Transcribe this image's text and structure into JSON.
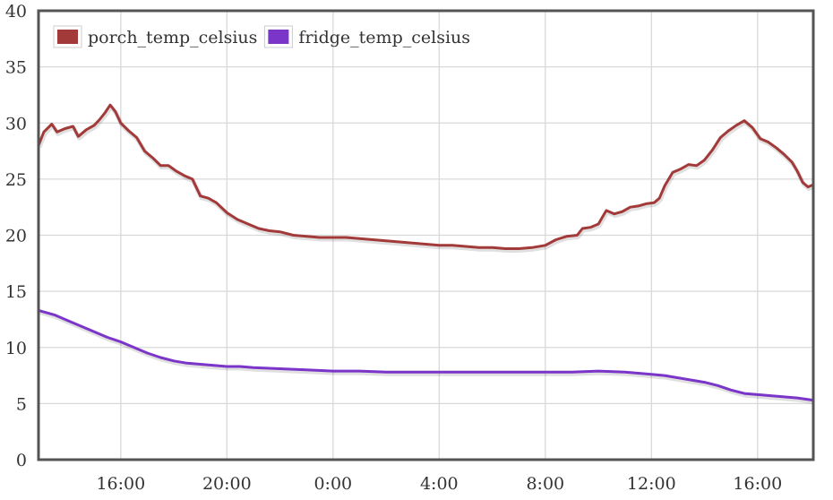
{
  "chart_data": {
    "type": "line",
    "title": "",
    "xlabel": "",
    "ylabel": "",
    "xlim": [
      12.9,
      42.1
    ],
    "ylim": [
      0,
      40
    ],
    "y_ticks": [
      0,
      5,
      10,
      15,
      20,
      25,
      30,
      35,
      40
    ],
    "x_ticks": [
      {
        "value": 16,
        "label": "16:00"
      },
      {
        "value": 20,
        "label": "20:00"
      },
      {
        "value": 24,
        "label": "0:00"
      },
      {
        "value": 28,
        "label": "4:00"
      },
      {
        "value": 32,
        "label": "8:00"
      },
      {
        "value": 36,
        "label": "12:00"
      },
      {
        "value": 40,
        "label": "16:00"
      }
    ],
    "grid": true,
    "legend_position": "top-left",
    "series": [
      {
        "name": "porch_temp_celsius",
        "color": "#a33a3a",
        "points": [
          [
            12.9,
            28.0
          ],
          [
            13.1,
            29.2
          ],
          [
            13.4,
            29.9
          ],
          [
            13.6,
            29.2
          ],
          [
            13.9,
            29.5
          ],
          [
            14.2,
            29.7
          ],
          [
            14.4,
            28.8
          ],
          [
            14.7,
            29.4
          ],
          [
            15.0,
            29.8
          ],
          [
            15.2,
            30.3
          ],
          [
            15.4,
            30.9
          ],
          [
            15.6,
            31.6
          ],
          [
            15.8,
            31.0
          ],
          [
            16.0,
            30.0
          ],
          [
            16.3,
            29.3
          ],
          [
            16.6,
            28.7
          ],
          [
            16.9,
            27.5
          ],
          [
            17.2,
            26.9
          ],
          [
            17.5,
            26.2
          ],
          [
            17.8,
            26.2
          ],
          [
            18.1,
            25.7
          ],
          [
            18.4,
            25.3
          ],
          [
            18.7,
            25.0
          ],
          [
            19.0,
            23.5
          ],
          [
            19.3,
            23.3
          ],
          [
            19.6,
            22.9
          ],
          [
            20.0,
            22.0
          ],
          [
            20.4,
            21.4
          ],
          [
            20.8,
            21.0
          ],
          [
            21.2,
            20.6
          ],
          [
            21.6,
            20.4
          ],
          [
            22.0,
            20.3
          ],
          [
            22.5,
            20.0
          ],
          [
            23.0,
            19.9
          ],
          [
            23.5,
            19.8
          ],
          [
            24.0,
            19.8
          ],
          [
            24.5,
            19.8
          ],
          [
            25.0,
            19.7
          ],
          [
            25.5,
            19.6
          ],
          [
            26.0,
            19.5
          ],
          [
            26.5,
            19.4
          ],
          [
            27.0,
            19.3
          ],
          [
            27.5,
            19.2
          ],
          [
            28.0,
            19.1
          ],
          [
            28.5,
            19.1
          ],
          [
            29.0,
            19.0
          ],
          [
            29.5,
            18.9
          ],
          [
            30.0,
            18.9
          ],
          [
            30.5,
            18.8
          ],
          [
            31.0,
            18.8
          ],
          [
            31.5,
            18.9
          ],
          [
            32.0,
            19.1
          ],
          [
            32.4,
            19.6
          ],
          [
            32.8,
            19.9
          ],
          [
            33.2,
            20.0
          ],
          [
            33.4,
            20.6
          ],
          [
            33.7,
            20.7
          ],
          [
            34.0,
            21.0
          ],
          [
            34.3,
            22.2
          ],
          [
            34.6,
            21.9
          ],
          [
            34.9,
            22.1
          ],
          [
            35.2,
            22.5
          ],
          [
            35.5,
            22.6
          ],
          [
            35.8,
            22.8
          ],
          [
            36.1,
            22.9
          ],
          [
            36.3,
            23.3
          ],
          [
            36.5,
            24.4
          ],
          [
            36.8,
            25.6
          ],
          [
            37.1,
            25.9
          ],
          [
            37.4,
            26.3
          ],
          [
            37.7,
            26.2
          ],
          [
            38.0,
            26.7
          ],
          [
            38.3,
            27.6
          ],
          [
            38.6,
            28.7
          ],
          [
            38.9,
            29.3
          ],
          [
            39.2,
            29.8
          ],
          [
            39.5,
            30.2
          ],
          [
            39.8,
            29.6
          ],
          [
            40.1,
            28.6
          ],
          [
            40.4,
            28.3
          ],
          [
            40.7,
            27.8
          ],
          [
            41.0,
            27.2
          ],
          [
            41.3,
            26.5
          ],
          [
            41.5,
            25.7
          ],
          [
            41.7,
            24.7
          ],
          [
            41.9,
            24.3
          ],
          [
            42.1,
            24.5
          ]
        ]
      },
      {
        "name": "fridge_temp_celsius",
        "color": "#7b35c9",
        "points": [
          [
            12.9,
            13.3
          ],
          [
            13.5,
            12.9
          ],
          [
            14.0,
            12.4
          ],
          [
            14.5,
            11.9
          ],
          [
            15.0,
            11.4
          ],
          [
            15.5,
            10.9
          ],
          [
            16.0,
            10.5
          ],
          [
            16.5,
            10.0
          ],
          [
            17.0,
            9.5
          ],
          [
            17.5,
            9.1
          ],
          [
            18.0,
            8.8
          ],
          [
            18.5,
            8.6
          ],
          [
            19.0,
            8.5
          ],
          [
            19.5,
            8.4
          ],
          [
            20.0,
            8.3
          ],
          [
            20.5,
            8.3
          ],
          [
            21.0,
            8.2
          ],
          [
            22.0,
            8.1
          ],
          [
            23.0,
            8.0
          ],
          [
            24.0,
            7.9
          ],
          [
            25.0,
            7.9
          ],
          [
            26.0,
            7.8
          ],
          [
            27.0,
            7.8
          ],
          [
            28.0,
            7.8
          ],
          [
            29.0,
            7.8
          ],
          [
            30.0,
            7.8
          ],
          [
            31.0,
            7.8
          ],
          [
            32.0,
            7.8
          ],
          [
            33.0,
            7.8
          ],
          [
            34.0,
            7.9
          ],
          [
            35.0,
            7.8
          ],
          [
            36.0,
            7.6
          ],
          [
            36.5,
            7.5
          ],
          [
            37.0,
            7.3
          ],
          [
            37.5,
            7.1
          ],
          [
            38.0,
            6.9
          ],
          [
            38.5,
            6.6
          ],
          [
            39.0,
            6.2
          ],
          [
            39.5,
            5.9
          ],
          [
            40.0,
            5.8
          ],
          [
            40.5,
            5.7
          ],
          [
            41.0,
            5.6
          ],
          [
            41.5,
            5.5
          ],
          [
            42.1,
            5.3
          ]
        ]
      }
    ]
  }
}
